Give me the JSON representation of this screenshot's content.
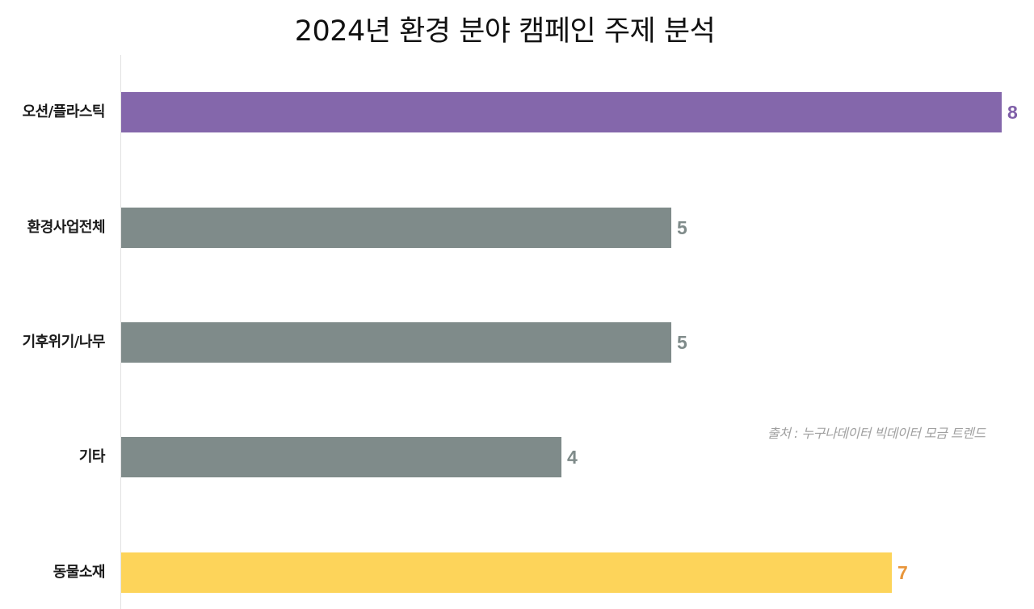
{
  "chart_data": {
    "type": "bar",
    "orientation": "horizontal",
    "title": "2024년 환경 분야 캠페인 주제 분석",
    "categories": [
      "오션/플라스틱",
      "환경사업전체",
      "기후위기/나무",
      "기타",
      "동물소재"
    ],
    "values": [
      8,
      5,
      5,
      4,
      7
    ],
    "colors": [
      "#8467ab",
      "#7f8b8a",
      "#7f8b8a",
      "#7f8b8a",
      "#fdd45a"
    ],
    "label_colors": [
      "#7f5fa8",
      "#7f8b8a",
      "#7f8b8a",
      "#7f8b8a",
      "#e8953a"
    ],
    "xlabel": "",
    "ylabel": "",
    "xlim": [
      0,
      8
    ],
    "grid": false,
    "legend": "none",
    "annotation": "출처 : 누구나데이터 빅데이터 모금 트렌드"
  },
  "title": "2024년 환경 분야 캠페인 주제 분석",
  "source": "출처 : 누구나데이터 빅데이터 모금 트렌드",
  "bars": [
    {
      "label": "오션/플라스틱",
      "value": "8"
    },
    {
      "label": "환경사업전체",
      "value": "5"
    },
    {
      "label": "기후위기/나무",
      "value": "5"
    },
    {
      "label": "기타",
      "value": "4"
    },
    {
      "label": "동물소재",
      "value": "7"
    }
  ]
}
